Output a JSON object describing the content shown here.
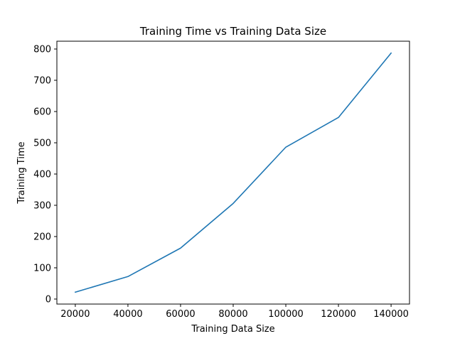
{
  "chart_data": {
    "type": "line",
    "title": "Training Time vs Training Data Size",
    "xlabel": "Training Data Size",
    "ylabel": "Training Time",
    "x": [
      20000,
      40000,
      60000,
      80000,
      100000,
      120000,
      140000
    ],
    "series": [
      {
        "values": [
          22,
          72,
          163,
          306,
          486,
          581,
          787
        ],
        "color": "#1f77b4"
      }
    ],
    "xlim": [
      13000,
      147000
    ],
    "ylim": [
      -16,
      825
    ],
    "xticks": [
      20000,
      40000,
      60000,
      80000,
      100000,
      120000,
      140000
    ],
    "yticks": [
      0,
      100,
      200,
      300,
      400,
      500,
      600,
      700,
      800
    ],
    "grid": false,
    "legend": "none"
  }
}
